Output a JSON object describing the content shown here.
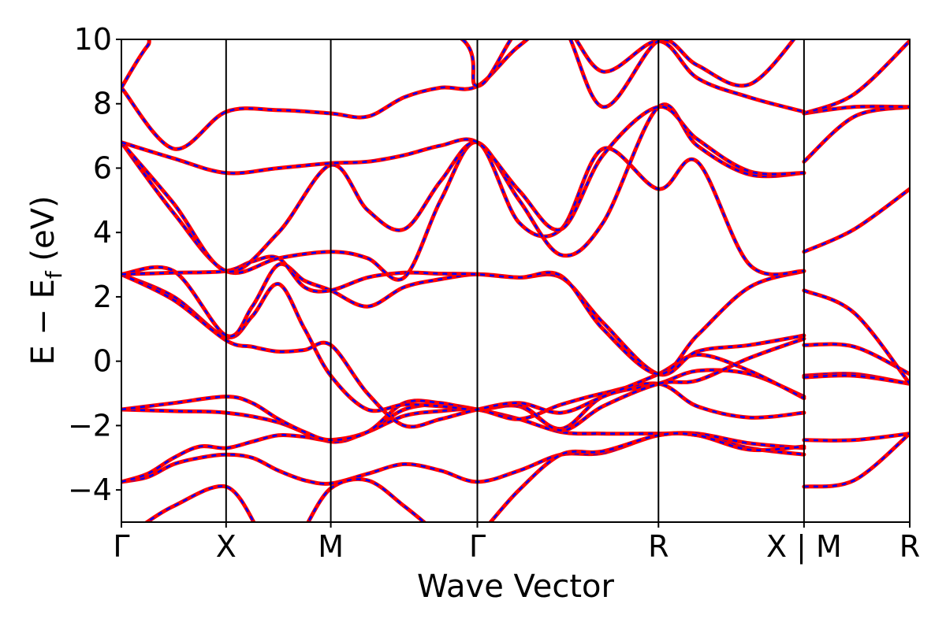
{
  "chart_data": {
    "type": "line",
    "title": "",
    "xlabel": "Wave Vector",
    "ylabel_parts": [
      "E − E",
      "f",
      " (eV)"
    ],
    "ylim": [
      -5,
      10
    ],
    "yticks": [
      -4,
      -2,
      0,
      2,
      4,
      6,
      8,
      10
    ],
    "ytick_labels": [
      "−4",
      "−2",
      "0",
      "2",
      "4",
      "6",
      "8",
      "10"
    ],
    "x_range": [
      0,
      6.8
    ],
    "high_symmetry_points": [
      {
        "label": "Γ",
        "x": 0
      },
      {
        "label": "X",
        "x": 1
      },
      {
        "label": "M",
        "x": 2
      },
      {
        "label": "Γ",
        "x": 3.4
      },
      {
        "label": "R",
        "x": 5.13
      },
      {
        "label": "X | M",
        "x": 6.52
      },
      {
        "label": "R",
        "x": 7.53
      }
    ],
    "x_max": 7.53,
    "line_colors": {
      "solid": "#ff0000",
      "dashed": "#0000ff"
    },
    "bands": [
      {
        "x": [
          0,
          0.25,
          0.5,
          0.75,
          1,
          1.25,
          1.5,
          1.75,
          2,
          2.35,
          2.7,
          3.05,
          3.4,
          3.8,
          4.2,
          4.6,
          5.13,
          5.5,
          6.0,
          6.52,
          6.52,
          7.0,
          7.53
        ],
        "y": [
          -3.75,
          -3.6,
          -3.2,
          -3.0,
          -2.9,
          -3.0,
          -3.4,
          -3.7,
          -3.8,
          -3.5,
          -3.2,
          -3.4,
          -3.75,
          -3.4,
          -2.9,
          -2.85,
          -2.3,
          -2.3,
          -2.7,
          -2.9,
          -3.9,
          -3.7,
          -2.25
        ]
      },
      {
        "x": [
          0,
          0.25,
          0.5,
          0.75,
          1,
          1.25,
          1.5,
          1.75,
          2,
          2.35,
          2.7,
          3.05,
          3.4,
          3.8,
          4.2,
          4.6,
          5.13,
          5.5,
          6.0,
          6.52,
          6.52,
          7.0,
          7.53
        ],
        "y": [
          -3.75,
          -3.5,
          -3.0,
          -2.65,
          -2.7,
          -2.5,
          -2.3,
          -2.35,
          -2.45,
          -2.2,
          -1.5,
          -1.35,
          -1.5,
          -1.8,
          -2.2,
          -2.25,
          -2.25,
          -2.25,
          -2.55,
          -2.7,
          -2.45,
          -2.45,
          -2.25
        ]
      },
      {
        "x": [
          0,
          0.5,
          1,
          1.5,
          2,
          2.35,
          2.7,
          3.05,
          3.4,
          3.8,
          4.2,
          4.6,
          5.13,
          5.5,
          6.0,
          6.52,
          6.52,
          7.0,
          7.53
        ],
        "y": [
          -1.5,
          -1.55,
          -1.6,
          -1.9,
          -2.5,
          -2.2,
          -1.7,
          -1.55,
          -1.5,
          -1.8,
          -1.35,
          -1.0,
          -0.7,
          -1.4,
          -1.75,
          -1.6,
          -0.45,
          -0.4,
          -0.7
        ]
      },
      {
        "x": [
          0,
          0.5,
          1,
          1.25,
          1.5,
          1.75,
          2,
          2.35,
          2.7,
          3.05,
          3.4,
          3.8,
          4.2,
          4.6,
          5.13,
          5.5,
          6.0,
          6.52,
          6.52,
          7.0,
          7.53
        ],
        "y": [
          -1.5,
          -1.3,
          -1.1,
          -1.3,
          -1.8,
          -2.2,
          -2.45,
          -2.2,
          -1.3,
          -1.3,
          -1.5,
          -1.4,
          -2.1,
          -1.1,
          -0.7,
          -0.3,
          -0.4,
          -1.1,
          0.5,
          0.45,
          -0.4
        ]
      },
      {
        "x": [
          0,
          0.5,
          1,
          1.25,
          1.5,
          1.75,
          2,
          2.35,
          2.7,
          3.05,
          3.4,
          3.8,
          4.2,
          4.6,
          5.13,
          5.5,
          6.0,
          6.52,
          6.52,
          7.0,
          7.53
        ],
        "y": [
          2.7,
          2.0,
          0.75,
          1.4,
          2.4,
          1.0,
          -0.45,
          -1.5,
          -1.35,
          -1.4,
          -1.5,
          -1.35,
          -2.15,
          -1.4,
          -0.7,
          -0.6,
          0.1,
          0.7,
          -0.5,
          -0.45,
          -0.7
        ]
      },
      {
        "x": [
          0,
          0.5,
          1,
          1.25,
          1.5,
          1.75,
          2,
          2.35,
          2.7,
          3.05,
          3.4,
          3.8,
          4.2,
          4.6,
          5.13,
          5.5,
          6.0,
          6.52,
          6.52,
          7.0,
          7.53
        ],
        "y": [
          2.7,
          1.9,
          0.65,
          0.45,
          0.3,
          0.35,
          0.5,
          -1.0,
          -2.0,
          -1.8,
          -1.5,
          -1.3,
          -1.6,
          -1.1,
          -0.4,
          0.2,
          -0.3,
          -1.15,
          2.2,
          1.5,
          -0.7
        ]
      },
      {
        "x": [
          0,
          0.5,
          1,
          1.25,
          1.5,
          1.75,
          2,
          2.35,
          2.7,
          3.05,
          3.4,
          3.8,
          4.2,
          4.6,
          5.13,
          5.5,
          6.0,
          6.52,
          6.52,
          7.0,
          7.53
        ],
        "y": [
          2.7,
          2.8,
          0.8,
          1.7,
          3.0,
          2.5,
          2.2,
          1.7,
          2.3,
          2.55,
          2.7,
          2.6,
          2.6,
          1.2,
          -0.4,
          0.3,
          0.5,
          0.8,
          3.4,
          4.1,
          5.35
        ]
      },
      {
        "x": [
          0,
          0.5,
          1,
          1.25,
          1.5,
          1.75,
          2,
          2.35,
          2.7,
          3.05,
          3.4,
          3.8,
          4.2,
          4.6,
          5.13,
          5.5,
          6.0,
          6.52,
          6.52,
          7.0,
          7.53
        ],
        "y": [
          2.7,
          2.75,
          2.8,
          3.1,
          3.2,
          2.3,
          2.2,
          2.6,
          2.75,
          2.72,
          2.7,
          2.6,
          2.65,
          1.0,
          -0.4,
          0.8,
          2.3,
          2.8,
          6.2,
          7.6,
          7.9
        ]
      },
      {
        "x": [
          0,
          0.5,
          1,
          1.5,
          2,
          2.35,
          2.7,
          3.05,
          3.4,
          3.8,
          4.2,
          4.6,
          5.13,
          5.5,
          6.0,
          6.52,
          6.52,
          7.0,
          7.53
        ],
        "y": [
          6.8,
          4.6,
          2.8,
          3.2,
          3.4,
          3.2,
          2.6,
          5.0,
          6.8,
          4.3,
          4.1,
          6.6,
          5.35,
          6.2,
          3.0,
          2.8,
          7.7,
          7.9,
          7.9
        ]
      },
      {
        "x": [
          0,
          0.5,
          1,
          1.5,
          2,
          2.35,
          2.7,
          3.05,
          3.4,
          3.8,
          4.2,
          4.6,
          5.13,
          5.5,
          6.0,
          6.52,
          6.52,
          7.0,
          7.53
        ],
        "y": [
          6.8,
          4.9,
          2.8,
          4.0,
          6.1,
          4.7,
          4.1,
          5.6,
          6.8,
          5.0,
          3.3,
          4.3,
          7.9,
          6.7,
          5.8,
          5.85,
          7.7,
          8.3,
          9.95
        ]
      },
      {
        "x": [
          0,
          0.5,
          1,
          1.5,
          2,
          2.35,
          2.7,
          3.05,
          3.4,
          3.8,
          4.2,
          4.6,
          5.13,
          5.5,
          6.0,
          6.52
        ],
        "y": [
          6.8,
          6.3,
          5.85,
          6.0,
          6.15,
          6.2,
          6.4,
          6.7,
          6.8,
          5.3,
          4.1,
          6.4,
          7.9,
          6.9,
          5.9,
          5.85
        ]
      },
      {
        "x": [
          0,
          0.5,
          1,
          1.5,
          2,
          2.35,
          2.7,
          3.05,
          3.4,
          3.8,
          4.2,
          4.6,
          5.13,
          5.5,
          6.0,
          6.52
        ],
        "y": [
          8.5,
          6.6,
          7.75,
          7.8,
          7.7,
          7.6,
          8.2,
          8.5,
          8.55,
          9.8,
          10.5,
          9.0,
          9.95,
          8.8,
          8.2,
          7.75
        ]
      },
      {
        "x": [
          0,
          0.25,
          0.5,
          3.05,
          3.4,
          3.8,
          4.2,
          4.6,
          5.13,
          5.5,
          6.0,
          6.52
        ],
        "y": [
          8.5,
          9.8,
          10.5,
          10.3,
          8.55,
          10.3,
          10.5,
          7.9,
          9.95,
          9.2,
          8.6,
          10.4
        ]
      },
      {
        "x": [
          1.75,
          2,
          2.35,
          2.7,
          3.0
        ],
        "y": [
          -5.2,
          -3.95,
          -3.7,
          -4.5,
          -5.3
        ]
      },
      {
        "x": [
          0.2,
          0.5,
          1,
          1.3
        ],
        "y": [
          -5.1,
          -4.5,
          -3.9,
          -5.2
        ]
      },
      {
        "x": [
          3.5,
          3.8,
          4.2,
          4.6,
          5.13,
          5.5,
          6.0,
          6.52
        ],
        "y": [
          -5.1,
          -4.0,
          -2.9,
          -2.8,
          -2.3,
          -2.3,
          -2.75,
          -2.65
        ]
      }
    ]
  }
}
